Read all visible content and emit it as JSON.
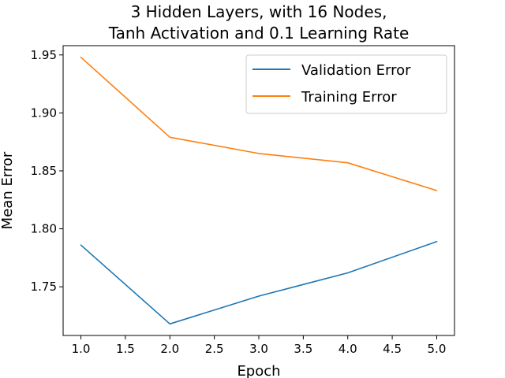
{
  "chart_data": {
    "type": "line",
    "title": "3 Hidden Layers, with 16 Nodes,",
    "subtitle": "Tanh Activation and 0.1 Learning Rate",
    "xlabel": "Epoch",
    "ylabel": "Mean Error",
    "x": [
      1.0,
      2.0,
      3.0,
      4.0,
      5.0
    ],
    "xlim": [
      0.8,
      5.2
    ],
    "ylim": [
      1.708,
      1.958
    ],
    "xticks": [
      1.0,
      1.5,
      2.0,
      2.5,
      3.0,
      3.5,
      4.0,
      4.5,
      5.0
    ],
    "xtick_labels": [
      "1.0",
      "1.5",
      "2.0",
      "2.5",
      "3.0",
      "3.5",
      "4.0",
      "4.5",
      "5.0"
    ],
    "yticks": [
      1.75,
      1.8,
      1.85,
      1.9,
      1.95
    ],
    "ytick_labels": [
      "1.75",
      "1.80",
      "1.85",
      "1.90",
      "1.95"
    ],
    "grid": false,
    "legend_position": "top-right",
    "series": [
      {
        "name": "Validation Error",
        "color": "#1f77b4",
        "values": [
          1.786,
          1.718,
          1.742,
          1.762,
          1.789
        ]
      },
      {
        "name": "Training Error",
        "color": "#ff7f0e",
        "values": [
          1.948,
          1.879,
          1.865,
          1.857,
          1.833
        ]
      }
    ]
  }
}
